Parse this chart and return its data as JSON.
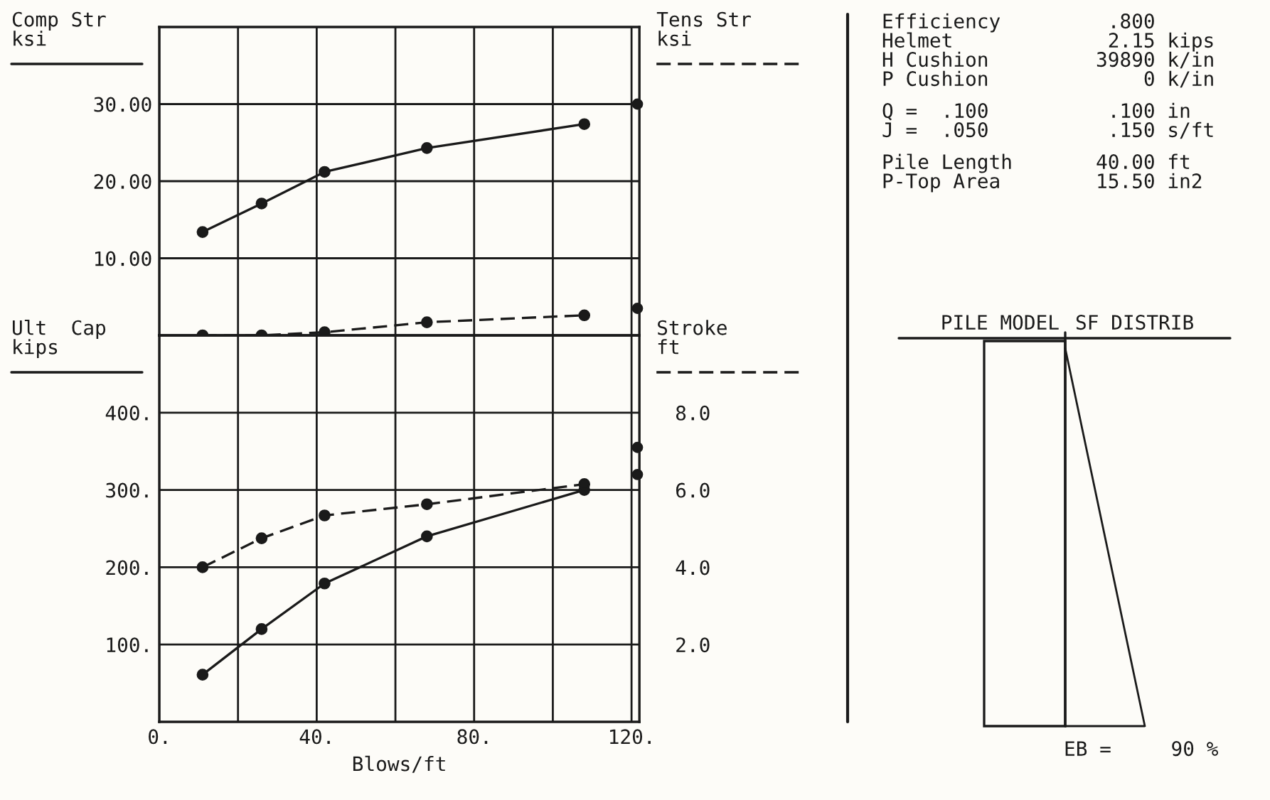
{
  "chart_data": [
    {
      "type": "line",
      "xlim": [
        0,
        122
      ],
      "xticks": [
        {
          "value": 0,
          "label": null
        },
        {
          "value": 20,
          "label": null
        },
        {
          "value": 40,
          "label": null
        },
        {
          "value": 60,
          "label": null
        },
        {
          "value": 80,
          "label": null
        },
        {
          "value": 100,
          "label": null
        },
        {
          "value": 120,
          "label": null
        }
      ],
      "ylim": [
        0,
        40
      ],
      "yticks": [
        {
          "value": 10,
          "label": "10.00"
        },
        {
          "value": 20,
          "label": "20.00"
        },
        {
          "value": 30,
          "label": "30.00"
        }
      ],
      "tick_labels": "y",
      "grid": true,
      "ylabel": "Comp Str\nksi",
      "y2label": "Tens Str\nksi",
      "marker": "circle",
      "series": [
        {
          "color": "#1a1a1a",
          "line_style": "solid",
          "x": [
            11,
            26,
            42,
            68,
            108
          ],
          "values": [
            13.4,
            17.1,
            21.2,
            24.3,
            27.4
          ]
        },
        {
          "color": "#1a1a1a",
          "line_style": "dashed",
          "x": [
            11,
            26,
            42,
            68,
            108
          ],
          "values": [
            0,
            0,
            0.4,
            1.7,
            2.6
          ]
        },
        {
          "type": "scatter",
          "color": "#1a1a1a",
          "x": [
            121.5,
            121.5
          ],
          "values": [
            30,
            3.5
          ]
        }
      ]
    },
    {
      "type": "line",
      "xlim": [
        0,
        122
      ],
      "xticks": [
        {
          "value": 0,
          "label": "0."
        },
        {
          "value": 20,
          "label": null
        },
        {
          "value": 40,
          "label": "40."
        },
        {
          "value": 60,
          "label": null
        },
        {
          "value": 80,
          "label": "80."
        },
        {
          "value": 100,
          "label": null
        },
        {
          "value": 120,
          "label": "120."
        }
      ],
      "xlabel": "Blows/ft",
      "ylabel": "Ult  Cap\nkips",
      "y2label": "Stroke\nft",
      "ylim": [
        0,
        500
      ],
      "yticks": [
        {
          "value": 100,
          "label": "100."
        },
        {
          "value": 200,
          "label": "200."
        },
        {
          "value": 300,
          "label": "300."
        },
        {
          "value": 400,
          "label": "400."
        }
      ],
      "y2lim": [
        0,
        10
      ],
      "y2ticks": [
        {
          "value": 2,
          "label": "2.0"
        },
        {
          "value": 4,
          "label": "4.0"
        },
        {
          "value": 6,
          "label": "6.0"
        },
        {
          "value": 8,
          "label": "8.0"
        }
      ],
      "grid": true,
      "marker": "circle",
      "series": [
        {
          "color": "#1a1a1a",
          "line_style": "solid",
          "x": [
            11,
            26,
            42,
            68,
            108
          ],
          "values": [
            61,
            120,
            179,
            240,
            300
          ]
        },
        {
          "color": "#1a1a1a",
          "line_style": "dashed",
          "axis": "y2",
          "x": [
            11,
            26,
            42,
            68,
            108
          ],
          "values": [
            4.0,
            4.75,
            5.34,
            5.63,
            6.15
          ]
        },
        {
          "type": "scatter",
          "color": "#1a1a1a",
          "axis": "y2",
          "x": [
            121.5,
            121.5
          ],
          "values": [
            7.1,
            6.4
          ]
        }
      ]
    },
    {
      "type": "other",
      "annotations": [
        "Efficiency         .800",
        "Helmet             2.15 kips",
        "H Cushion         39890 k/in",
        "P Cushion             0 k/in",
        "Q =  .100          .100 in",
        "J =  .050          .150 s/ft",
        "Pile Length       40.00 ft",
        "P-Top Area        15.50 in2",
        "PILE MODEL",
        "SF DISTRIB",
        "EB =     90 %"
      ]
    }
  ]
}
